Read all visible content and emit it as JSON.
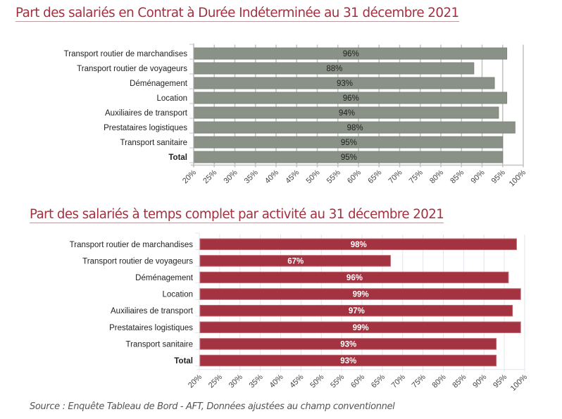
{
  "chart_data": [
    {
      "type": "bar",
      "orientation": "horizontal",
      "title": "Part des salariés en Contrat à Durée Indéterminée au 31 décembre 2021",
      "categories": [
        "Transport routier de marchandises",
        "Transport routier de voyageurs",
        "Déménagement",
        "Location",
        "Auxiliaires de transport",
        "Prestataires logistiques",
        "Transport sanitaire",
        "Total"
      ],
      "values": [
        96,
        88,
        93,
        96,
        94,
        98,
        95,
        95
      ],
      "data_labels": [
        "96%",
        "88%",
        "93%",
        "96%",
        "94%",
        "98%",
        "95%",
        "95%"
      ],
      "bold_categories": [
        "Total"
      ],
      "xlim": [
        20,
        100
      ],
      "xticks": [
        "20%",
        "25%",
        "30%",
        "35%",
        "40%",
        "45%",
        "50%",
        "55%",
        "60%",
        "65%",
        "70%",
        "75%",
        "80%",
        "85%",
        "90%",
        "95%",
        "100%"
      ],
      "xlabel": "",
      "ylabel": "",
      "grid": true,
      "bar_color": "#8a9288",
      "label_color": "#222222",
      "grid_color": "#c4c4c4"
    },
    {
      "type": "bar",
      "orientation": "horizontal",
      "title": "Part des salariés à temps complet par activité au 31 décembre 2021",
      "categories": [
        "Transport routier de marchandises",
        "Transport routier de voyageurs",
        "Déménagement",
        "Location",
        "Auxiliaires de transport",
        "Prestataires logistiques",
        "Transport sanitaire",
        "Total"
      ],
      "values": [
        98,
        67,
        96,
        99,
        97,
        99,
        93,
        93
      ],
      "data_labels": [
        "98%",
        "67%",
        "96%",
        "99%",
        "97%",
        "99%",
        "93%",
        "93%"
      ],
      "bold_categories": [
        "Total"
      ],
      "xlim": [
        20,
        100
      ],
      "xticks": [
        "20%",
        "25%",
        "30%",
        "35%",
        "40%",
        "45%",
        "50%",
        "55%",
        "60%",
        "65%",
        "70%",
        "75%",
        "80%",
        "85%",
        "90%",
        "95%",
        "100%"
      ],
      "xlabel": "",
      "ylabel": "",
      "grid": true,
      "bar_color": "#a33340",
      "label_color": "#ffffff",
      "grid_color": "#e3e6ee"
    }
  ],
  "source": "Source : Enquête Tableau de Bord - AFT, Données ajustées au champ conventionnel"
}
